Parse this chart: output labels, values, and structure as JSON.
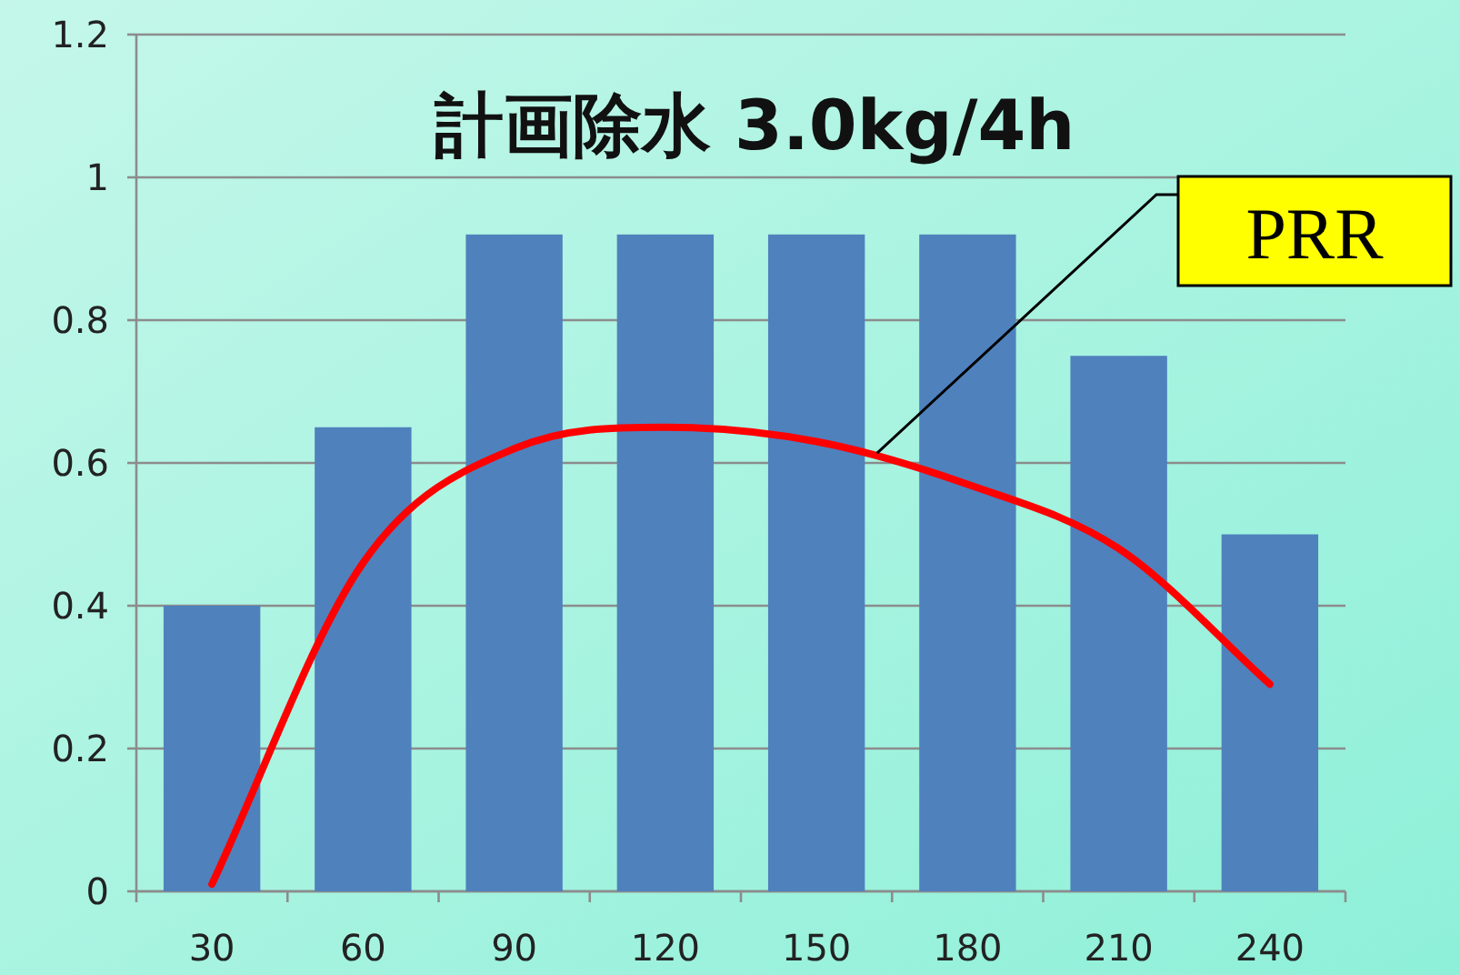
{
  "chart_data": {
    "type": "bar",
    "title": "計画除水 3.0kg/4h",
    "categories": [
      "30",
      "60",
      "90",
      "120",
      "150",
      "180",
      "210",
      "240"
    ],
    "series": [
      {
        "color": "#4f81bd",
        "values": [
          0.4,
          0.65,
          0.92,
          0.92,
          0.92,
          0.92,
          0.75,
          0.5
        ]
      },
      {
        "type": "line",
        "name": "PRR",
        "color": "#ff0000",
        "values": [
          0.01,
          0.46,
          0.62,
          0.65,
          0.63,
          0.57,
          0.48,
          0.29
        ]
      }
    ],
    "ylim": [
      0,
      1.2
    ],
    "yticks": [
      0,
      0.2,
      0.4,
      0.6,
      0.8,
      1,
      1.2
    ],
    "grid": "y",
    "legend": false
  }
}
